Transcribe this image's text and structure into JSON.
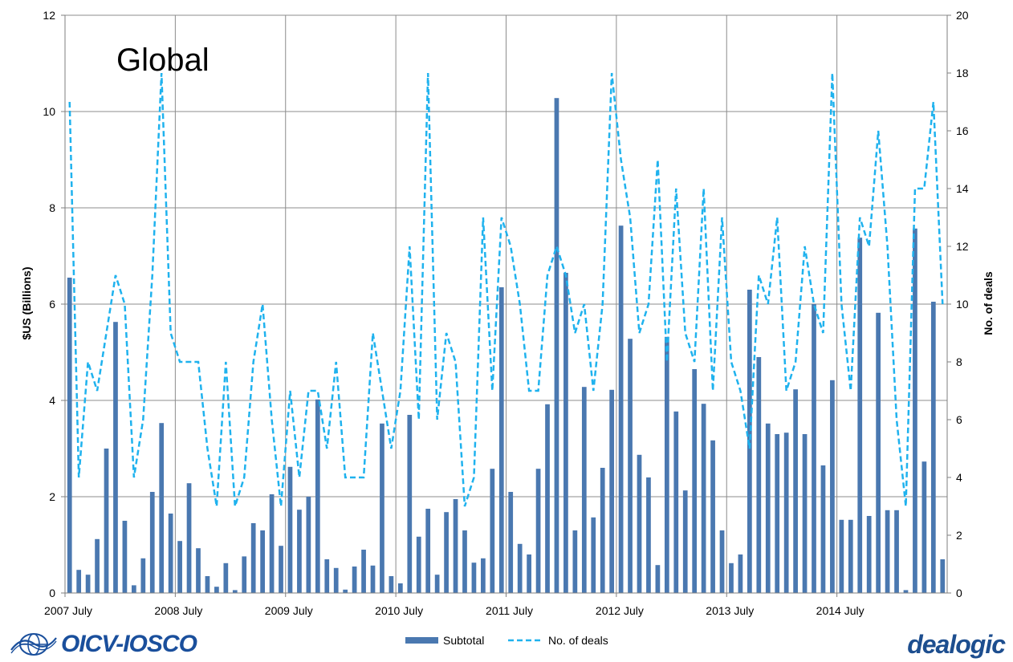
{
  "chart_data": {
    "type": "bar+line",
    "title": "Global",
    "ylabel_left": "$US (Billions)",
    "ylabel_right": "No. of deals",
    "ylim_left": [
      0,
      12
    ],
    "ylim_right": [
      0,
      20
    ],
    "yticks_left": [
      "0",
      "2",
      "4",
      "6",
      "8",
      "10",
      "12"
    ],
    "yticks_right": [
      "0",
      "2",
      "4",
      "6",
      "8",
      "10",
      "12",
      "14",
      "16",
      "18",
      "20"
    ],
    "xtick_labels": [
      "2007 July",
      "2008 July",
      "2009 July",
      "2010 July",
      "2011 July",
      "2012 July",
      "2013 July",
      "2014 July"
    ],
    "grid": true,
    "legend_position": "bottom",
    "series": [
      {
        "name": "Subtotal",
        "kind": "bar",
        "axis": "left",
        "color": "#4a78b0",
        "values": [
          6.55,
          0.48,
          0.38,
          1.12,
          3.0,
          5.63,
          1.5,
          0.16,
          0.72,
          2.1,
          3.53,
          1.65,
          1.08,
          2.28,
          0.93,
          0.35,
          0.13,
          0.62,
          0.06,
          0.76,
          1.45,
          1.3,
          2.05,
          0.98,
          2.62,
          1.73,
          2.0,
          4.02,
          0.7,
          0.52,
          0.07,
          0.55,
          0.9,
          0.57,
          3.52,
          0.35,
          0.2,
          3.7,
          1.17,
          1.75,
          0.38,
          1.68,
          1.95,
          1.3,
          0.63,
          0.72,
          2.58,
          6.35,
          2.1,
          1.02,
          0.8,
          2.58,
          3.92,
          10.28,
          6.65,
          1.3,
          4.28,
          1.57,
          2.6,
          4.22,
          7.63,
          5.28,
          2.87,
          2.4,
          0.58,
          5.32,
          3.77,
          2.13,
          4.65,
          3.93,
          3.17,
          1.3,
          0.62,
          0.8,
          6.3,
          4.9,
          3.52,
          3.3,
          3.33,
          4.23,
          3.3,
          6.0,
          2.65,
          4.42,
          1.52,
          1.52,
          7.38,
          1.6,
          5.82,
          1.72,
          1.72,
          0.06,
          7.57,
          2.73,
          6.05,
          0.7
        ]
      },
      {
        "name": "No. of deals",
        "kind": "line",
        "style": "dashed",
        "axis": "right",
        "color": "#1fb2ee",
        "values": [
          17,
          4,
          8,
          7,
          9,
          11,
          10,
          4,
          6,
          11,
          18,
          9,
          8,
          8,
          8,
          5,
          3,
          8,
          3,
          4,
          8,
          10,
          6,
          3,
          7,
          4,
          7,
          7,
          5,
          8,
          4,
          4,
          4,
          9,
          7,
          5,
          7,
          12,
          6,
          18,
          6,
          9,
          8,
          3,
          4,
          13,
          7,
          13,
          12,
          10,
          7,
          7,
          11,
          12,
          11,
          9,
          10,
          7,
          10,
          18,
          15,
          13,
          9,
          10,
          15,
          8,
          14,
          9,
          8,
          14,
          7,
          13,
          8,
          7,
          5,
          11,
          10,
          13,
          7,
          8,
          12,
          10,
          9,
          18,
          10,
          7,
          13,
          12,
          16,
          12,
          6,
          3,
          14,
          14,
          17,
          10
        ]
      }
    ]
  },
  "logos": {
    "left": "OICV-IOSCO",
    "right": "dealogic"
  },
  "icons": {
    "left_logo_icon": "globe-icon"
  }
}
